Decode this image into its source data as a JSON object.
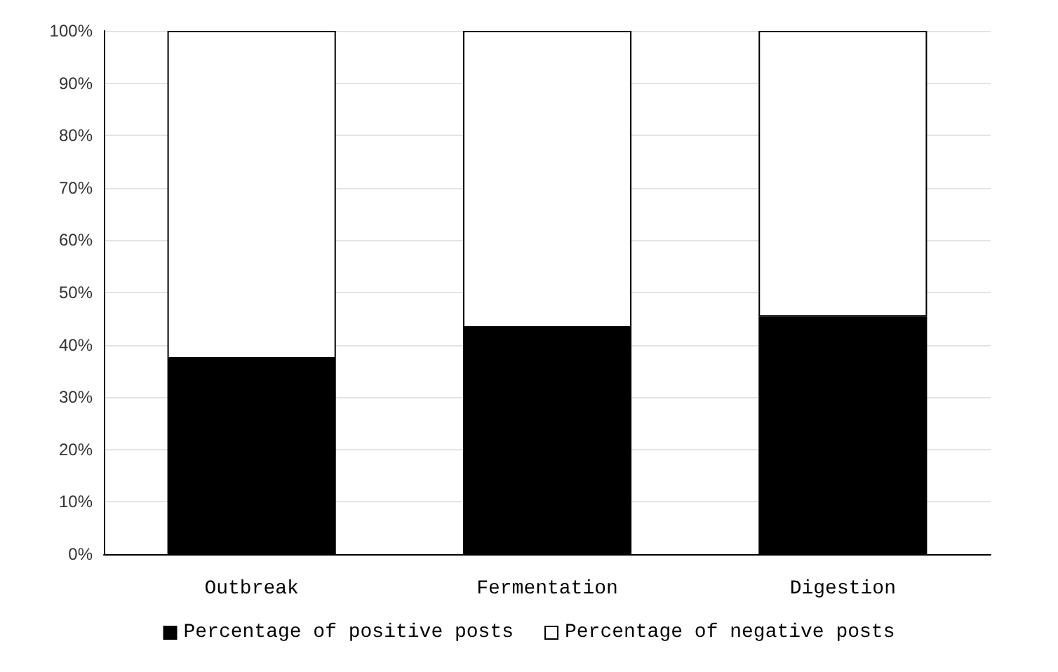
{
  "chart_data": {
    "type": "bar",
    "stacked": true,
    "categories": [
      "Outbreak",
      "Fermentation",
      "Digestion"
    ],
    "series": [
      {
        "name": "Percentage of positive posts",
        "color": "#000000",
        "values": [
          37.4,
          43.3,
          45.4
        ]
      },
      {
        "name": "Percentage of negative posts",
        "color": "#ffffff",
        "values": [
          62.6,
          56.7,
          54.6
        ]
      }
    ],
    "ylim": [
      0,
      100
    ],
    "yticks": [
      {
        "value": 0,
        "label": "0%"
      },
      {
        "value": 10,
        "label": "10%"
      },
      {
        "value": 20,
        "label": "20%"
      },
      {
        "value": 30,
        "label": "30%"
      },
      {
        "value": 40,
        "label": "40%"
      },
      {
        "value": 50,
        "label": "50%"
      },
      {
        "value": 60,
        "label": "60%"
      },
      {
        "value": 70,
        "label": "70%"
      },
      {
        "value": 80,
        "label": "80%"
      },
      {
        "value": 90,
        "label": "90%"
      },
      {
        "value": 100,
        "label": "100%"
      }
    ],
    "grid": "y",
    "legend": "bottom"
  }
}
